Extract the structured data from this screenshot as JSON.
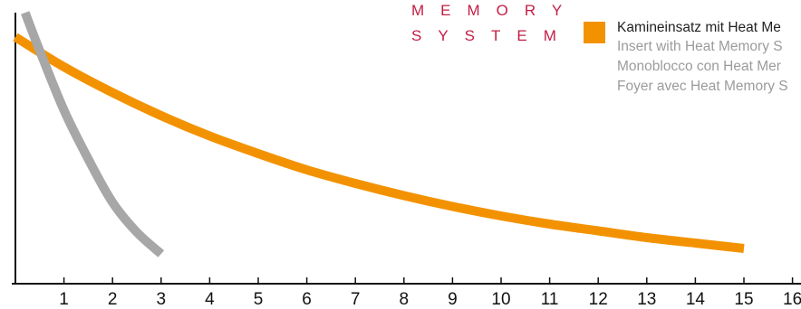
{
  "brand": {
    "line1": "MEMORY",
    "line2": "SYSTEM",
    "color": "#c31e45"
  },
  "legend": {
    "swatch_color": "#f39200",
    "primary": "Kamineinsatz mit Heat Me",
    "secondary": [
      "Insert with Heat Memory S",
      "Monoblocco con Heat Mer",
      "Foyer avec Heat Memory S"
    ],
    "primary_color": "#222222",
    "secondary_color": "#9b9b9b"
  },
  "chart_data": {
    "type": "line",
    "x_ticks": [
      "1",
      "2",
      "3",
      "4",
      "5",
      "6",
      "7",
      "8",
      "9",
      "10",
      "11",
      "12",
      "13",
      "14",
      "15",
      "16"
    ],
    "xlim": [
      0,
      16
    ],
    "ylim": [
      0,
      100
    ],
    "grid": false,
    "series": [
      {
        "name": "Kamineinsatz mit Heat Me",
        "color": "#f39200",
        "x": [
          0,
          1,
          2,
          3,
          4,
          5,
          6,
          7,
          8,
          9,
          10,
          11,
          12,
          13,
          14,
          15
        ],
        "y": [
          91,
          80,
          70.5,
          62,
          54.5,
          48,
          42,
          37,
          32.5,
          28.5,
          25,
          22,
          19.5,
          17,
          15,
          13
        ]
      },
      {
        "color": "#a7a7a7",
        "x": [
          0.2,
          0.5,
          1,
          1.5,
          2,
          2.5,
          3
        ],
        "y": [
          100,
          86,
          64,
          46,
          30,
          19,
          11
        ]
      }
    ]
  }
}
